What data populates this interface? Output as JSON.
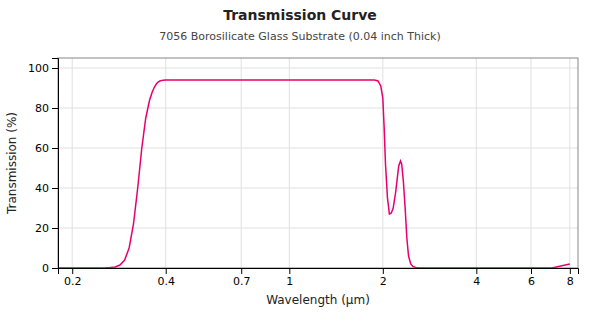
{
  "chart_data": {
    "type": "line",
    "title": "Transmission Curve",
    "subtitle": "7056 Borosilicate Glass Substrate (0.04 inch Thick)",
    "xlabel": "Wavelength (μm)",
    "ylabel": "Transmission (%)",
    "color": "#e8006e",
    "log": "x",
    "grid": true,
    "xlim": [
      0.18,
      8.5
    ],
    "ylim": [
      0,
      105
    ],
    "xticks": [
      0.2,
      0.4,
      0.7,
      1,
      2,
      4,
      6,
      8
    ],
    "yticks": [
      0,
      20,
      40,
      60,
      80,
      100
    ],
    "x": [
      0.18,
      0.2,
      0.22,
      0.24,
      0.255,
      0.265,
      0.275,
      0.285,
      0.295,
      0.305,
      0.315,
      0.325,
      0.335,
      0.345,
      0.355,
      0.362,
      0.368,
      0.373,
      0.378,
      0.383,
      0.388,
      0.393,
      0.398,
      0.403,
      0.41,
      0.42,
      0.5,
      0.7,
      1.0,
      1.5,
      1.8,
      1.88,
      1.93,
      1.97,
      2.0,
      2.02,
      2.04,
      2.07,
      2.1,
      2.13,
      2.16,
      2.2,
      2.25,
      2.28,
      2.3,
      2.33,
      2.36,
      2.39,
      2.42,
      2.46,
      2.5,
      2.55,
      2.6,
      2.65,
      2.7,
      2.75,
      2.8,
      2.9,
      3.0,
      3.5,
      4.0,
      5.0,
      6.0,
      7.0,
      8.0
    ],
    "values": [
      0,
      0,
      0,
      0,
      0,
      0.2,
      0.5,
      1.5,
      4,
      10,
      22,
      40,
      60,
      75,
      84,
      88,
      90.5,
      92.0,
      93.0,
      93.5,
      93.8,
      93.9,
      94.0,
      94.0,
      94.0,
      94.0,
      94.0,
      94.0,
      94.0,
      94.0,
      94.0,
      94.0,
      93.5,
      91.0,
      85.0,
      70.0,
      52.0,
      35.0,
      27.0,
      27.5,
      30.0,
      38.0,
      51.0,
      53.5,
      52.0,
      43.0,
      30.0,
      15.0,
      6.0,
      2.0,
      0.8,
      0.3,
      0.1,
      0.05,
      0.02,
      0.01,
      0.01,
      0.01,
      0.01,
      0.01,
      0.01,
      0.01,
      0.01,
      0.01,
      2.0
    ]
  }
}
